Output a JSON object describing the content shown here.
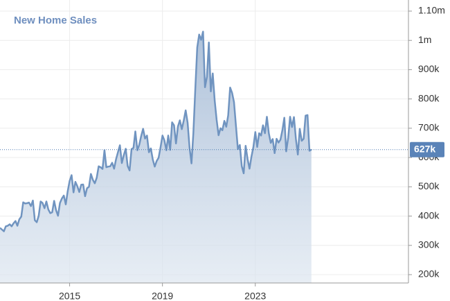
{
  "chart_data": {
    "type": "area",
    "title": "New Home Sales",
    "x": [
      2012,
      2012.083,
      2012.167,
      2012.25,
      2012.333,
      2012.417,
      2012.5,
      2012.583,
      2012.667,
      2012.75,
      2012.833,
      2012.917,
      2013,
      2013.083,
      2013.167,
      2013.25,
      2013.333,
      2013.417,
      2013.5,
      2013.583,
      2013.667,
      2013.75,
      2013.833,
      2013.917,
      2014,
      2014.083,
      2014.167,
      2014.25,
      2014.333,
      2014.417,
      2014.5,
      2014.583,
      2014.667,
      2014.75,
      2014.833,
      2014.917,
      2015,
      2015.083,
      2015.167,
      2015.25,
      2015.333,
      2015.417,
      2015.5,
      2015.583,
      2015.667,
      2015.75,
      2015.833,
      2015.917,
      2016,
      2016.083,
      2016.167,
      2016.25,
      2016.333,
      2016.417,
      2016.5,
      2016.583,
      2016.667,
      2016.75,
      2016.833,
      2016.917,
      2017,
      2017.083,
      2017.167,
      2017.25,
      2017.333,
      2017.417,
      2017.5,
      2017.583,
      2017.667,
      2017.75,
      2017.833,
      2017.917,
      2018,
      2018.083,
      2018.167,
      2018.25,
      2018.333,
      2018.417,
      2018.5,
      2018.583,
      2018.667,
      2018.75,
      2018.833,
      2018.917,
      2019,
      2019.083,
      2019.167,
      2019.25,
      2019.333,
      2019.417,
      2019.5,
      2019.583,
      2019.667,
      2019.75,
      2019.833,
      2019.917,
      2020,
      2020.083,
      2020.167,
      2020.25,
      2020.333,
      2020.417,
      2020.5,
      2020.583,
      2020.667,
      2020.75,
      2020.833,
      2020.917,
      2021,
      2021.083,
      2021.167,
      2021.25,
      2021.333,
      2021.417,
      2021.5,
      2021.583,
      2021.667,
      2021.75,
      2021.833,
      2021.917,
      2022,
      2022.083,
      2022.167,
      2022.25,
      2022.333,
      2022.417,
      2022.5,
      2022.583,
      2022.667,
      2022.75,
      2022.833,
      2022.917,
      2023,
      2023.083,
      2023.167,
      2023.25,
      2023.333,
      2023.417,
      2023.5,
      2023.583,
      2023.667,
      2023.75,
      2023.833,
      2023.917,
      2024,
      2024.083,
      2024.167,
      2024.25,
      2024.333,
      2024.417,
      2024.5,
      2024.583,
      2024.667,
      2024.75,
      2024.833,
      2024.917,
      2025,
      2025.083,
      2025.167,
      2025.25,
      2025.333,
      2025.417
    ],
    "series": [
      {
        "name": "New Home Sales",
        "color": "#7094c0",
        "values": [
          360000,
          354000,
          348000,
          365000,
          367000,
          372000,
          365000,
          375000,
          383000,
          367000,
          389000,
          398000,
          447000,
          443000,
          444000,
          446000,
          434000,
          453000,
          386000,
          379000,
          401000,
          450000,
          445000,
          427000,
          450000,
          423000,
          410000,
          413000,
          452000,
          420000,
          401000,
          445000,
          460000,
          470000,
          440000,
          485000,
          520000,
          540000,
          481000,
          517000,
          502000,
          482000,
          507000,
          508000,
          468000,
          495000,
          500000,
          544000,
          524000,
          512000,
          531000,
          570000,
          567000,
          561000,
          625000,
          567000,
          569000,
          570000,
          582000,
          562000,
          594000,
          618000,
          642000,
          581000,
          608000,
          630000,
          571000,
          556000,
          629000,
          633000,
          689000,
          625000,
          643000,
          673000,
          698000,
          665000,
          675000,
          618000,
          631000,
          593000,
          569000,
          588000,
          599000,
          635000,
          675000,
          659000,
          625000,
          675000,
          626000,
          720000,
          710000,
          648000,
          706000,
          727000,
          697000,
          726000,
          761000,
          719000,
          634000,
          580000,
          683000,
          839000,
          976000,
          1020000,
          1002000,
          1030000,
          840000,
          876000,
          993000,
          826000,
          887000,
          795000,
          729000,
          676000,
          700000,
          693000,
          725000,
          705000,
          744000,
          839000,
          821000,
          789000,
          709000,
          629000,
          643000,
          571000,
          546000,
          640000,
          595000,
          562000,
          603000,
          636000,
          687000,
          636000,
          683000,
          675000,
          710000,
          683000,
          739000,
          683000,
          650000,
          663000,
          615000,
          664000,
          651000,
          661000,
          693000,
          736000,
          621000,
          668000,
          739000,
          704000,
          738000,
          664000,
          610000,
          698000,
          657000,
          664000,
          743000,
          745000,
          623000,
          627000
        ]
      }
    ],
    "last_label": {
      "value": 627000,
      "label": "627k"
    },
    "xlim": [
      2012,
      2029.6
    ],
    "xticks": [
      2015,
      2019,
      2023
    ],
    "ylim": [
      171600,
      1137900
    ],
    "yticks": [
      {
        "value": 200000,
        "label": "200k"
      },
      {
        "value": 300000,
        "label": "300k"
      },
      {
        "value": 400000,
        "label": "400k"
      },
      {
        "value": 500000,
        "label": "500k"
      },
      {
        "value": 600000,
        "label": "600k"
      },
      {
        "value": 700000,
        "label": "700k"
      },
      {
        "value": 800000,
        "label": "800k"
      },
      {
        "value": 900000,
        "label": "900k"
      },
      {
        "value": 1000000,
        "label": "1m"
      },
      {
        "value": 1100000,
        "label": "1.10m"
      }
    ],
    "grid": true
  }
}
